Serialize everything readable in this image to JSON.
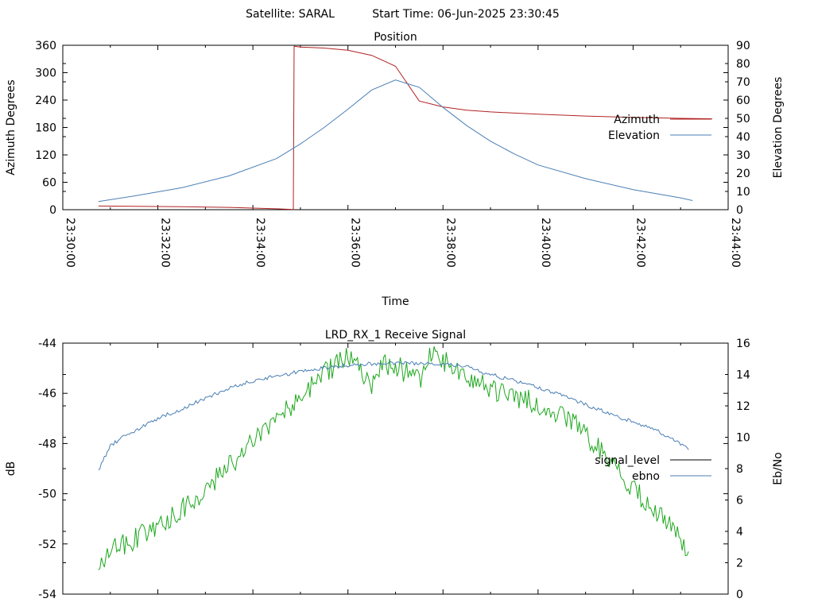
{
  "header": {
    "satellite_label": "Satellite: SARAL",
    "start_time_label": "Start Time: 06-Jun-2025 23:30:45"
  },
  "chart_data": [
    {
      "type": "line",
      "title": "Position",
      "xlabel": "Time",
      "ylabel": "Azimuth Degrees",
      "y2label": "Elevation Degrees",
      "x_unit": "time",
      "xlim": [
        "23:30:00",
        "23:44:00"
      ],
      "xticks": [
        "23:30:00",
        "23:32:00",
        "23:34:00",
        "23:36:00",
        "23:38:00",
        "23:40:00",
        "23:42:00",
        "23:44:00"
      ],
      "ylim": [
        0,
        360
      ],
      "yticks": [
        "0",
        "60",
        "120",
        "180",
        "240",
        "300",
        "360"
      ],
      "y2lim": [
        0,
        90
      ],
      "y2ticks": [
        "0",
        "10",
        "20",
        "30",
        "40",
        "50",
        "60",
        "70",
        "80",
        "90"
      ],
      "legend_position": "right",
      "grid": false,
      "series": [
        {
          "name": "Azimuth",
          "color": "#b22222",
          "axis": "left",
          "x": [
            "23:30:45",
            "23:31:30",
            "23:32:30",
            "23:33:30",
            "23:34:30",
            "23:34:51",
            "23:34:52",
            "23:35:00",
            "23:35:30",
            "23:36:00",
            "23:36:30",
            "23:37:00",
            "23:37:30",
            "23:38:00",
            "23:38:30",
            "23:39:00",
            "23:40:00",
            "23:41:00",
            "23:42:00",
            "23:43:00",
            "23:43:40"
          ],
          "y": [
            8,
            7.5,
            6.5,
            5,
            2,
            0.5,
            358,
            356,
            354,
            349,
            338,
            314,
            238,
            225,
            218,
            214,
            209,
            205,
            202,
            200,
            199
          ]
        },
        {
          "name": "Elevation",
          "color": "#4a7fb5",
          "axis": "right",
          "x": [
            "23:30:45",
            "23:31:30",
            "23:32:30",
            "23:33:30",
            "23:34:30",
            "23:35:00",
            "23:35:30",
            "23:36:00",
            "23:36:30",
            "23:37:00",
            "23:37:30",
            "23:38:00",
            "23:38:30",
            "23:39:00",
            "23:39:30",
            "23:40:00",
            "23:41:00",
            "23:42:00",
            "23:43:00",
            "23:43:15"
          ],
          "y": [
            4.5,
            7.5,
            12,
            18.5,
            28,
            36,
            45,
            55,
            65.5,
            71,
            67,
            56,
            46,
            37.5,
            30.5,
            24.5,
            17,
            11,
            6.5,
            5
          ]
        }
      ]
    },
    {
      "type": "line",
      "title": "LRD_RX_1 Receive Signal",
      "xlabel": "",
      "ylabel": "dB",
      "y2label": "Eb/No",
      "x_unit": "time",
      "xlim": [
        "23:30:00",
        "23:44:00"
      ],
      "ylim": [
        -54,
        -44
      ],
      "yticks": [
        "-54",
        "-52",
        "-50",
        "-48",
        "-46",
        "-44"
      ],
      "y2lim": [
        0,
        16
      ],
      "y2ticks": [
        "0",
        "2",
        "4",
        "6",
        "8",
        "10",
        "12",
        "14",
        "16"
      ],
      "legend_position": "right",
      "grid": false,
      "series": [
        {
          "name": "signal_level",
          "color": "#1fa81f",
          "axis": "left",
          "x": [
            "23:30:45",
            "23:31:00",
            "23:31:30",
            "23:32:00",
            "23:32:30",
            "23:33:00",
            "23:33:30",
            "23:34:00",
            "23:34:30",
            "23:35:00",
            "23:35:30",
            "23:36:00",
            "23:36:30",
            "23:36:45",
            "23:37:00",
            "23:37:30",
            "23:37:45",
            "23:38:00",
            "23:38:30",
            "23:39:00",
            "23:39:30",
            "23:40:00",
            "23:40:30",
            "23:41:00",
            "23:41:30",
            "23:42:00",
            "23:42:30",
            "23:43:00",
            "23:43:10"
          ],
          "y": [
            -53,
            -52.3,
            -51.8,
            -51.3,
            -50.6,
            -49.8,
            -48.9,
            -48,
            -47,
            -46.1,
            -45.2,
            -44.5,
            -45.6,
            -44.8,
            -44.9,
            -45.5,
            -44.5,
            -44.7,
            -45.3,
            -45.8,
            -46.1,
            -46.4,
            -46.9,
            -47.6,
            -48.7,
            -49.8,
            -50.8,
            -51.8,
            -52.3
          ]
        },
        {
          "name": "ebno",
          "color": "#4a7fb5",
          "axis": "right",
          "x": [
            "23:30:45",
            "23:31:00",
            "23:31:30",
            "23:32:00",
            "23:32:30",
            "23:33:00",
            "23:33:30",
            "23:34:00",
            "23:34:30",
            "23:35:00",
            "23:35:30",
            "23:36:00",
            "23:36:30",
            "23:37:00",
            "23:37:30",
            "23:38:00",
            "23:38:30",
            "23:39:00",
            "23:39:30",
            "23:40:00",
            "23:40:30",
            "23:41:00",
            "23:41:30",
            "23:42:00",
            "23:42:30",
            "23:43:00",
            "23:43:10"
          ],
          "y": [
            7.9,
            9.5,
            10.4,
            11.2,
            11.8,
            12.5,
            13.1,
            13.6,
            13.9,
            14.2,
            14.4,
            14.6,
            14.7,
            14.7,
            14.7,
            14.7,
            14.5,
            14,
            13.6,
            13.2,
            12.7,
            12.1,
            11.5,
            11,
            10.4,
            9.6,
            9.2
          ]
        }
      ]
    }
  ]
}
